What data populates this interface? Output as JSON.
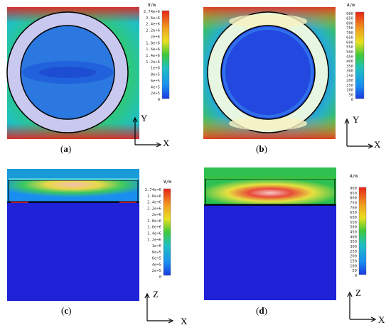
{
  "panels": {
    "a": {
      "caption_letter": "a",
      "unit": "V/m",
      "ticks": [
        "2.74e+6",
        "2.6e+6",
        "2.4e+6",
        "2.2e+6",
        "2e+6",
        "1.8e+6",
        "1.6e+6",
        "1.4e+6",
        "1.2e+6",
        "1e+6",
        "8e+5",
        "6e+5",
        "4e+5",
        "2e+5",
        "0"
      ],
      "axis_v": "Y",
      "axis_h": "X"
    },
    "b": {
      "caption_letter": "b",
      "unit": "A/m",
      "ticks": [
        "900",
        "850",
        "800",
        "750",
        "700",
        "650",
        "600",
        "550",
        "500",
        "450",
        "400",
        "350",
        "300",
        "250",
        "200",
        "150",
        "100",
        "50",
        "0"
      ],
      "axis_v": "Y",
      "axis_h": "X"
    },
    "c": {
      "caption_letter": "c",
      "unit": "V/m",
      "ticks": [
        "2.74e+6",
        "2.6e+6",
        "2.4e+6",
        "2.2e+6",
        "2e+6",
        "1.8e+6",
        "1.6e+6",
        "1.4e+6",
        "1.2e+6",
        "1e+6",
        "8e+5",
        "6e+5",
        "4e+5",
        "2e+5",
        "0"
      ],
      "axis_v": "Z",
      "axis_h": "X"
    },
    "d": {
      "caption_letter": "d",
      "unit": "A/m",
      "ticks": [
        "900",
        "850",
        "800",
        "750",
        "700",
        "650",
        "600",
        "550",
        "500",
        "450",
        "400",
        "350",
        "300",
        "250",
        "200",
        "150",
        "100",
        "50",
        "0"
      ],
      "axis_v": "Z",
      "axis_h": "X"
    }
  },
  "colors": {
    "field_high": "#e8231a",
    "field_mid": "#22c040",
    "field_low": "#1a4fe0",
    "ring_a": "#c9c9f0",
    "ring_b": "#e6f6e0"
  }
}
